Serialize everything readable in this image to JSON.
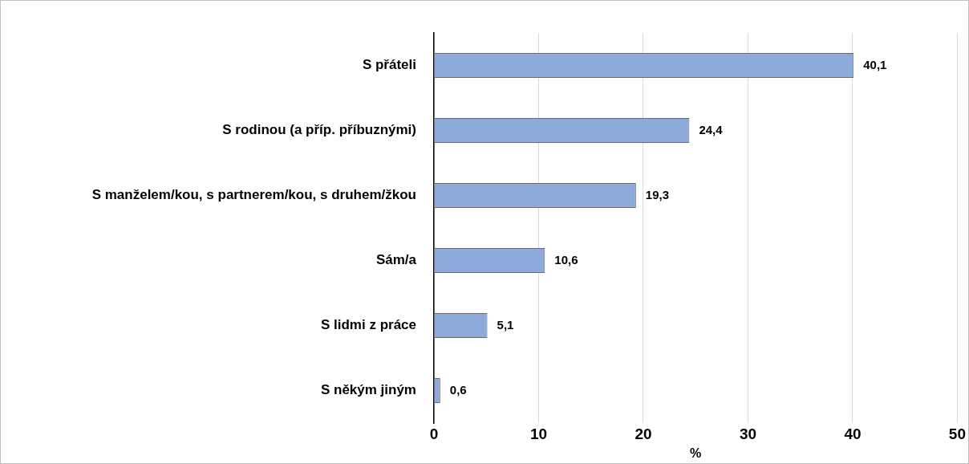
{
  "chart_data": {
    "type": "bar",
    "orientation": "horizontal",
    "xlabel": "%",
    "categories": [
      "S přáteli",
      "S rodinou (a příp. příbuznými)",
      "S manželem/kou, s partnerem/kou, s druhem/žkou",
      "Sám/a",
      "S lidmi z práce",
      "S někým jiným"
    ],
    "values": [
      40.1,
      24.4,
      19.3,
      10.6,
      5.1,
      0.6
    ],
    "value_labels": [
      "40,1",
      "24,4",
      "19,3",
      "10,6",
      "5,1",
      "0,6"
    ],
    "color": "#8eaadb",
    "xlim": [
      0,
      50
    ],
    "xticks": [
      0,
      10,
      20,
      30,
      40,
      50
    ],
    "grid": "x",
    "legend": false
  }
}
